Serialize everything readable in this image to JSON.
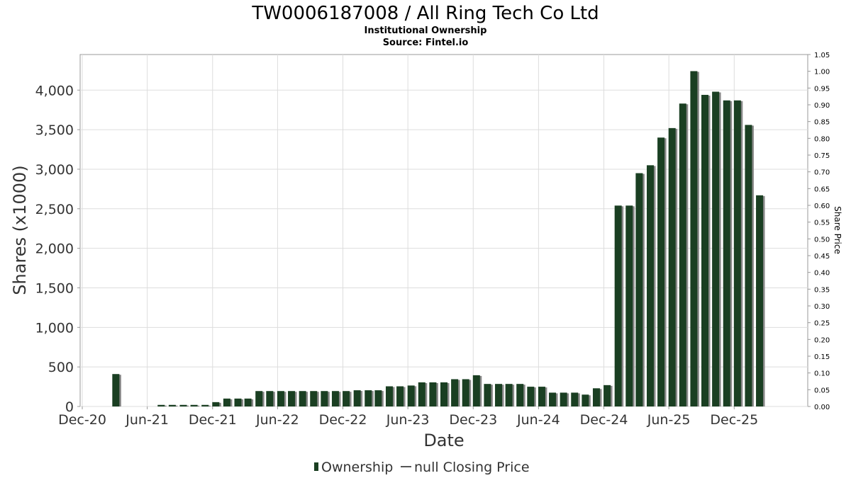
{
  "chart_data": {
    "type": "bar",
    "title": "TW0006187008 / All Ring Tech Co Ltd",
    "subtitle_1": "Institutional Ownership",
    "subtitle_2": "Source: Fintel.io",
    "xlabel": "Date",
    "ylabel": "Shares (x1000)",
    "ylabel_right": "Share Price",
    "ylim": [
      0,
      4450
    ],
    "ylim_right": [
      0,
      1.05
    ],
    "xlim": [
      "2020-11-25",
      "2026-06-25"
    ],
    "y_ticks": [
      "0",
      "500",
      "1,000",
      "1,500",
      "2,000",
      "2,500",
      "3,000",
      "3,500",
      "4,000"
    ],
    "y_tick_values": [
      0,
      500,
      1000,
      1500,
      2000,
      2500,
      3000,
      3500,
      4000
    ],
    "y_right_ticks": [
      "0.00",
      "0.05",
      "0.10",
      "0.15",
      "0.20",
      "0.25",
      "0.30",
      "0.35",
      "0.40",
      "0.45",
      "0.50",
      "0.55",
      "0.60",
      "0.65",
      "0.70",
      "0.75",
      "0.80",
      "0.85",
      "0.90",
      "0.95",
      "1.00",
      "1.05"
    ],
    "x_ticks": [
      "Dec-20",
      "Jun-21",
      "Dec-21",
      "Jun-22",
      "Dec-22",
      "Jun-23",
      "Dec-23",
      "Jun-24",
      "Dec-24",
      "Jun-25",
      "Dec-25"
    ],
    "x_tick_dates": [
      "2020-12-01",
      "2021-06-01",
      "2021-12-01",
      "2022-06-01",
      "2022-12-01",
      "2023-06-01",
      "2023-12-01",
      "2024-06-01",
      "2024-12-01",
      "2025-06-01",
      "2025-12-01"
    ],
    "grid": true,
    "legend": {
      "position": "bottom",
      "items": [
        "Ownership",
        "null Closing Price"
      ]
    },
    "series": [
      {
        "name": "Ownership",
        "color": "#1a3f22",
        "points": [
          {
            "date": "2021-03-05",
            "value": 410
          },
          {
            "date": "2021-07-10",
            "value": 20
          },
          {
            "date": "2021-08-10",
            "value": 20
          },
          {
            "date": "2021-09-10",
            "value": 20
          },
          {
            "date": "2021-10-10",
            "value": 20
          },
          {
            "date": "2021-11-10",
            "value": 20
          },
          {
            "date": "2021-12-10",
            "value": 55
          },
          {
            "date": "2022-01-10",
            "value": 100
          },
          {
            "date": "2022-02-10",
            "value": 100
          },
          {
            "date": "2022-03-10",
            "value": 100
          },
          {
            "date": "2022-04-10",
            "value": 195
          },
          {
            "date": "2022-05-10",
            "value": 195
          },
          {
            "date": "2022-06-10",
            "value": 195
          },
          {
            "date": "2022-07-10",
            "value": 195
          },
          {
            "date": "2022-08-10",
            "value": 195
          },
          {
            "date": "2022-09-10",
            "value": 195
          },
          {
            "date": "2022-10-10",
            "value": 195
          },
          {
            "date": "2022-11-10",
            "value": 195
          },
          {
            "date": "2022-12-10",
            "value": 195
          },
          {
            "date": "2023-01-10",
            "value": 205
          },
          {
            "date": "2023-02-10",
            "value": 205
          },
          {
            "date": "2023-03-10",
            "value": 205
          },
          {
            "date": "2023-04-10",
            "value": 255
          },
          {
            "date": "2023-05-10",
            "value": 255
          },
          {
            "date": "2023-06-10",
            "value": 265
          },
          {
            "date": "2023-07-10",
            "value": 305
          },
          {
            "date": "2023-08-10",
            "value": 305
          },
          {
            "date": "2023-09-10",
            "value": 305
          },
          {
            "date": "2023-10-10",
            "value": 345
          },
          {
            "date": "2023-11-10",
            "value": 345
          },
          {
            "date": "2023-12-10",
            "value": 395
          },
          {
            "date": "2024-01-10",
            "value": 285
          },
          {
            "date": "2024-02-10",
            "value": 285
          },
          {
            "date": "2024-03-10",
            "value": 285
          },
          {
            "date": "2024-04-10",
            "value": 285
          },
          {
            "date": "2024-05-10",
            "value": 250
          },
          {
            "date": "2024-06-10",
            "value": 250
          },
          {
            "date": "2024-07-10",
            "value": 175
          },
          {
            "date": "2024-08-10",
            "value": 175
          },
          {
            "date": "2024-09-10",
            "value": 175
          },
          {
            "date": "2024-10-10",
            "value": 150
          },
          {
            "date": "2024-11-10",
            "value": 230
          },
          {
            "date": "2024-12-10",
            "value": 270
          },
          {
            "date": "2025-01-10",
            "value": 2540
          },
          {
            "date": "2025-02-10",
            "value": 2540
          },
          {
            "date": "2025-03-10",
            "value": 2950
          },
          {
            "date": "2025-04-10",
            "value": 3050
          },
          {
            "date": "2025-05-10",
            "value": 3400
          },
          {
            "date": "2025-06-10",
            "value": 3520
          },
          {
            "date": "2025-07-10",
            "value": 3830
          },
          {
            "date": "2025-08-10",
            "value": 4240
          },
          {
            "date": "2025-09-10",
            "value": 3940
          },
          {
            "date": "2025-10-10",
            "value": 3980
          },
          {
            "date": "2025-11-10",
            "value": 3870
          },
          {
            "date": "2025-12-10",
            "value": 3870
          },
          {
            "date": "2026-01-10",
            "value": 3560
          },
          {
            "date": "2026-02-10",
            "value": 2670
          }
        ]
      },
      {
        "name": "null Closing Price",
        "color": "#555555",
        "points": []
      }
    ]
  }
}
